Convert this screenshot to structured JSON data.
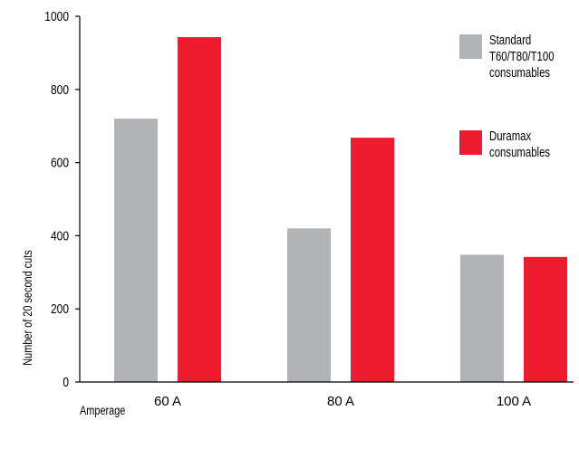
{
  "chart_data": {
    "type": "bar",
    "categories": [
      "60 A",
      "80 A",
      "100 A"
    ],
    "series": [
      {
        "name": "Standard T60/T80/T100 consumables",
        "values": [
          720,
          420,
          348
        ],
        "color": "#b1b3b6"
      },
      {
        "name": "Duramax consumables",
        "values": [
          943,
          668,
          342
        ],
        "color": "#ee1c2e"
      }
    ],
    "ylabel": "Number of 20 second cuts",
    "xlabel": "Amperage",
    "ylim": [
      0,
      1000
    ],
    "yticks": [
      0,
      200,
      400,
      600,
      800,
      1000
    ],
    "grid": false,
    "legend": {
      "placement": "top-right",
      "entries": [
        {
          "lines": [
            "Standard",
            "T60/T80/T100",
            "consumables"
          ],
          "color": "#b1b3b6"
        },
        {
          "lines": [
            "Duramax",
            "consumables"
          ],
          "color": "#ee1c2e"
        }
      ]
    }
  }
}
